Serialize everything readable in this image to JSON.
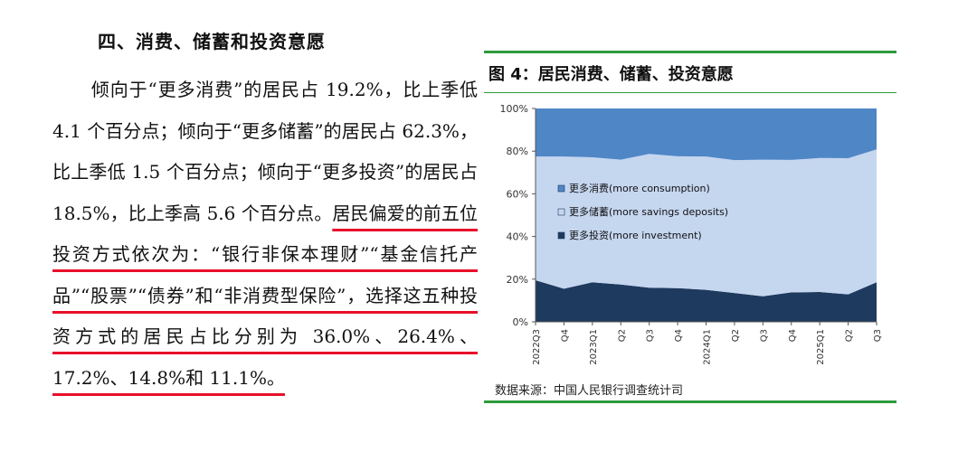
{
  "article": {
    "heading": "四、消费、储蓄和投资意愿",
    "para_plain": "倾向于“更多消费”的居民占 19.2%，比上季低 4.1 个百分点；倾向于“更多储蓄”的居民占 62.3%，比上季低 1.5 个百分点；倾向于“更多投资”的居民占 18.5%，比上季高 5.6 个百分点。",
    "para_highlight": "居民偏爱的前五位投资方式依次为：“银行非保本理财”“基金信托产品”“股票”“债券”和“非消费型保险”，选择这五种投资方式的居民占比分别为 36.0%、26.4%、17.2%、14.8%和 11.1%。",
    "highlight_color": "#e8102a"
  },
  "figure": {
    "title": "图 4：居民消费、储蓄、投资意愿",
    "source": "数据来源：中国人民银行调查统计司",
    "rule_color": "#2e9b3c"
  },
  "chart_data": {
    "type": "area",
    "stacked": true,
    "x": [
      "2022Q3",
      "Q4",
      "2023Q1",
      "Q2",
      "Q3",
      "Q4",
      "2024Q1",
      "Q2",
      "Q3",
      "Q4",
      "2025Q1",
      "Q2",
      "Q3"
    ],
    "series": [
      {
        "name": "更多投资(more investment)",
        "color": "#1f3a5f",
        "values": [
          19.5,
          15.5,
          18.5,
          17.5,
          16.0,
          15.8,
          15.0,
          13.5,
          12.0,
          13.8,
          14.0,
          12.9,
          18.5
        ]
      },
      {
        "name": "更多储蓄(more savings deposits)",
        "color": "#c5d6ef",
        "values": [
          58.0,
          62.0,
          58.6,
          58.5,
          62.7,
          61.8,
          62.5,
          62.3,
          64.0,
          62.1,
          62.8,
          63.8,
          62.3
        ]
      },
      {
        "name": "更多消费(more consumption)",
        "color": "#4f86c6",
        "values": [
          22.5,
          22.5,
          22.9,
          24.0,
          21.3,
          22.4,
          22.5,
          24.2,
          24.0,
          24.1,
          23.2,
          23.3,
          19.2
        ]
      }
    ],
    "y_ticks": [
      "0%",
      "20%",
      "40%",
      "60%",
      "80%",
      "100%"
    ],
    "ylim": [
      0,
      100
    ],
    "legend_position": "center-left, inside plot",
    "grid": false
  }
}
